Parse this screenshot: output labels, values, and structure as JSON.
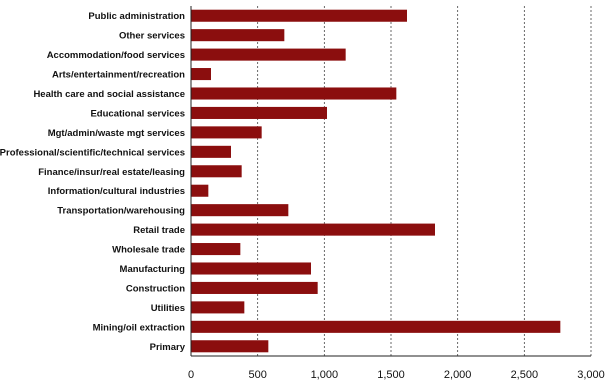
{
  "chart_data": {
    "type": "bar",
    "orientation": "horizontal",
    "title": "",
    "xlabel": "",
    "ylabel": "",
    "xlim": [
      0,
      3000
    ],
    "x_ticks": [
      0,
      500,
      1000,
      1500,
      2000,
      2500,
      3000
    ],
    "x_tick_labels": [
      "0",
      "500",
      "1,000",
      "1,500",
      "2,000",
      "2,500",
      "3,000"
    ],
    "grid": "vertical dotted",
    "legend": "none",
    "bar_color": "#8b0e0e",
    "categories": [
      "Public administration",
      "Other services",
      "Accommodation/food services",
      "Arts/entertainment/recreation",
      "Health care and social assistance",
      "Educational services",
      "Mgt/admin/waste mgt services",
      "Professional/scientific/technical services",
      "Finance/insur/real estate/leasing",
      "Information/cultural industries",
      "Transportation/warehousing",
      "Retail trade",
      "Wholesale trade",
      "Manufacturing",
      "Construction",
      "Utilities",
      "Mining/oil extraction",
      "Primary"
    ],
    "values": [
      1620,
      700,
      1160,
      150,
      1540,
      1020,
      530,
      300,
      380,
      130,
      730,
      1830,
      370,
      900,
      950,
      400,
      2770,
      580
    ]
  }
}
